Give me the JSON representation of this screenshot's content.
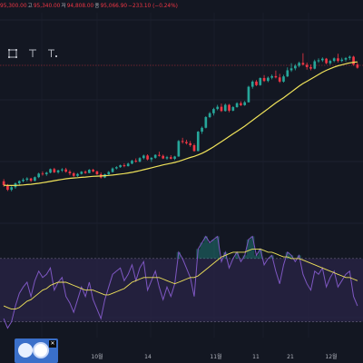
{
  "header": {
    "open": "95,300.00",
    "high_label": "고",
    "high": "95,340.00",
    "low_label": "저",
    "low": "94,808.00",
    "close_label": "종",
    "close": "95,066.90",
    "change": "−233.10 (−0.24%)"
  },
  "toolbar": {
    "icons": [
      "square-icon",
      "text-icon",
      "text-sub-icon"
    ]
  },
  "colors": {
    "background": "#131722",
    "up": "#26a69a",
    "down": "#f23645",
    "ma": "#f0e35a",
    "rsi": "#7e57c2",
    "rsi_band": "#2a2447",
    "rsi_ma": "#f0e35a"
  },
  "chart_data": [
    {
      "type": "candlestick",
      "xlabel": "",
      "ylabel": "",
      "x_tick_labels": [
        "10월",
        "14",
        "11월",
        "11",
        "21",
        "12월"
      ],
      "ma_period_note": "",
      "candles": [
        [
          60120,
          60800,
          58400,
          58950
        ],
        [
          58950,
          59300,
          57100,
          57500
        ],
        [
          57500,
          58600,
          57000,
          58300
        ],
        [
          58300,
          59800,
          57800,
          59500
        ],
        [
          59500,
          60400,
          58900,
          60200
        ],
        [
          60200,
          61100,
          59800,
          60600
        ],
        [
          60600,
          61400,
          60100,
          61000
        ],
        [
          61000,
          61200,
          59900,
          60300
        ],
        [
          60300,
          61600,
          60100,
          61400
        ],
        [
          61400,
          62800,
          61100,
          62500
        ],
        [
          62500,
          63200,
          61900,
          62300
        ],
        [
          62300,
          63100,
          61800,
          62800
        ],
        [
          62800,
          64100,
          62600,
          63900
        ],
        [
          63900,
          64300,
          62700,
          62900
        ],
        [
          62900,
          63700,
          62500,
          63500
        ],
        [
          63500,
          64200,
          63000,
          63800
        ],
        [
          63800,
          64300,
          62800,
          63100
        ],
        [
          63100,
          63600,
          62000,
          62600
        ],
        [
          62600,
          63000,
          61500,
          61800
        ],
        [
          61800,
          62700,
          61500,
          62400
        ],
        [
          62400,
          63300,
          62200,
          63100
        ],
        [
          63100,
          63500,
          62400,
          62700
        ],
        [
          62700,
          63900,
          62600,
          63700
        ],
        [
          63700,
          64000,
          62900,
          63200
        ],
        [
          63200,
          63400,
          62100,
          62300
        ],
        [
          62300,
          62900,
          61000,
          61300
        ],
        [
          61300,
          62500,
          61100,
          62300
        ],
        [
          62300,
          63300,
          62000,
          63000
        ],
        [
          63000,
          64400,
          62800,
          64100
        ],
        [
          64100,
          64800,
          63800,
          64500
        ],
        [
          64500,
          65300,
          64300,
          65100
        ],
        [
          65100,
          65700,
          64500,
          64800
        ],
        [
          64800,
          65900,
          64700,
          65600
        ],
        [
          65600,
          66800,
          65400,
          66500
        ],
        [
          66500,
          67200,
          65900,
          66200
        ],
        [
          66200,
          67600,
          66000,
          67300
        ],
        [
          67300,
          68400,
          66900,
          68100
        ],
        [
          68100,
          68500,
          66600,
          66900
        ],
        [
          66900,
          67600,
          66100,
          67400
        ],
        [
          67400,
          68500,
          67100,
          68300
        ],
        [
          68300,
          69300,
          67800,
          68000
        ],
        [
          68000,
          68400,
          67000,
          67200
        ],
        [
          67200,
          68000,
          66800,
          67600
        ],
        [
          67600,
          68200,
          66900,
          67100
        ],
        [
          67100,
          68000,
          66700,
          67800
        ],
        [
          67800,
          72900,
          67700,
          72600
        ],
        [
          72600,
          73600,
          71800,
          72300
        ],
        [
          72300,
          73000,
          71500,
          71900
        ],
        [
          71900,
          72600,
          70800,
          71300
        ],
        [
          71300,
          71800,
          69300,
          69500
        ],
        [
          69500,
          75700,
          69400,
          75500
        ],
        [
          75500,
          77100,
          74800,
          76700
        ],
        [
          76700,
          80300,
          76500,
          80000
        ],
        [
          80000,
          81600,
          79700,
          81200
        ],
        [
          81200,
          82900,
          80500,
          82500
        ],
        [
          82500,
          83800,
          82100,
          83200
        ],
        [
          83200,
          84200,
          81600,
          81900
        ],
        [
          81900,
          84200,
          81700,
          83800
        ],
        [
          83800,
          84100,
          81500,
          82000
        ],
        [
          82000,
          83400,
          81800,
          83100
        ],
        [
          83100,
          84600,
          82900,
          84300
        ],
        [
          84300,
          84900,
          83400,
          83700
        ],
        [
          83700,
          85000,
          83500,
          84600
        ],
        [
          84600,
          89700,
          84500,
          89400
        ],
        [
          89400,
          91400,
          88800,
          91000
        ],
        [
          91000,
          91500,
          89600,
          89900
        ],
        [
          89900,
          92300,
          89700,
          92100
        ],
        [
          92100,
          93000,
          90900,
          91200
        ],
        [
          91200,
          92600,
          90800,
          92200
        ],
        [
          92200,
          93200,
          91700,
          92700
        ],
        [
          92700,
          94400,
          92000,
          92300
        ],
        [
          92300,
          93400,
          90600,
          91000
        ],
        [
          91000,
          93100,
          90700,
          92600
        ],
        [
          92600,
          95400,
          92400,
          94500
        ],
        [
          94500,
          96700,
          94000,
          95100
        ],
        [
          95100,
          96400,
          94500,
          95900
        ],
        [
          95900,
          97200,
          95400,
          96800
        ],
        [
          96800,
          99800,
          96300,
          96200
        ],
        [
          96200,
          96900,
          94700,
          95500
        ],
        [
          95500,
          96300,
          94500,
          95000
        ],
        [
          95000,
          97800,
          94800,
          97300
        ],
        [
          97300,
          98200,
          96800,
          97600
        ],
        [
          97600,
          98500,
          97100,
          98100
        ],
        [
          98100,
          98300,
          96400,
          96700
        ],
        [
          96700,
          97800,
          96200,
          97400
        ],
        [
          97400,
          98500,
          97000,
          98200
        ],
        [
          98200,
          99600,
          96900,
          97400
        ],
        [
          97400,
          98400,
          97000,
          97800
        ],
        [
          97800,
          98600,
          97200,
          98300
        ],
        [
          98300,
          99100,
          97700,
          98700
        ],
        [
          98700,
          99000,
          95900,
          96300
        ],
        [
          96300,
          96900,
          95000,
          95300
        ]
      ],
      "ma": [
        58900,
        58850,
        58820,
        58850,
        58920,
        59000,
        59100,
        59200,
        59350,
        59500,
        59700,
        59900,
        60100,
        60300,
        60500,
        60700,
        60900,
        61050,
        61150,
        61250,
        61350,
        61450,
        61550,
        61650,
        61720,
        61780,
        61850,
        61930,
        62050,
        62200,
        62350,
        62500,
        62700,
        62900,
        63150,
        63400,
        63700,
        64000,
        64300,
        64600,
        64900,
        65200,
        65450,
        65700,
        65950,
        66300,
        66700,
        67100,
        67500,
        67850,
        68300,
        68800,
        69400,
        70100,
        70800,
        71600,
        72400,
        73200,
        74000,
        74800,
        75600,
        76400,
        77200,
        78100,
        79000,
        79900,
        80800,
        81700,
        82600,
        83500,
        84400,
        85200,
        86000,
        86900,
        87800,
        88700,
        89600,
        90400,
        91100,
        91800,
        92500,
        93200,
        93900,
        94500,
        95000,
        95500,
        95900,
        96200,
        96500,
        96800,
        97000,
        97100
      ]
    },
    {
      "type": "line",
      "name": "",
      "rsi": [
        32,
        26,
        30,
        40,
        48,
        52,
        55,
        46,
        56,
        62,
        58,
        60,
        64,
        50,
        55,
        58,
        46,
        42,
        36,
        44,
        52,
        46,
        55,
        44,
        38,
        32,
        44,
        52,
        60,
        62,
        64,
        56,
        60,
        66,
        56,
        64,
        68,
        50,
        56,
        62,
        52,
        44,
        52,
        46,
        54,
        74,
        70,
        64,
        58,
        46,
        76,
        80,
        84,
        80,
        82,
        84,
        68,
        74,
        64,
        70,
        74,
        68,
        72,
        82,
        84,
        72,
        76,
        66,
        70,
        72,
        62,
        54,
        66,
        74,
        72,
        68,
        72,
        60,
        54,
        50,
        62,
        60,
        64,
        52,
        58,
        62,
        52,
        56,
        60,
        62,
        46,
        40
      ],
      "rsi_ma": [
        40,
        39,
        38,
        38,
        39,
        41,
        43,
        44,
        46,
        48,
        50,
        51,
        53,
        54,
        55,
        55,
        55,
        54,
        53,
        52,
        51,
        50,
        50,
        50,
        49,
        48,
        47,
        47,
        48,
        49,
        50,
        51,
        53,
        55,
        56,
        57,
        58,
        58,
        58,
        58,
        58,
        57,
        56,
        55,
        54,
        55,
        56,
        57,
        58,
        58,
        59,
        61,
        63,
        65,
        67,
        69,
        71,
        72,
        73,
        74,
        74,
        74,
        74,
        75,
        76,
        76,
        76,
        75,
        74,
        74,
        73,
        72,
        71,
        71,
        70,
        70,
        70,
        69,
        68,
        67,
        66,
        65,
        64,
        63,
        62,
        61,
        60,
        59,
        58,
        58,
        57,
        56
      ],
      "band": [
        30,
        70
      ]
    }
  ]
}
